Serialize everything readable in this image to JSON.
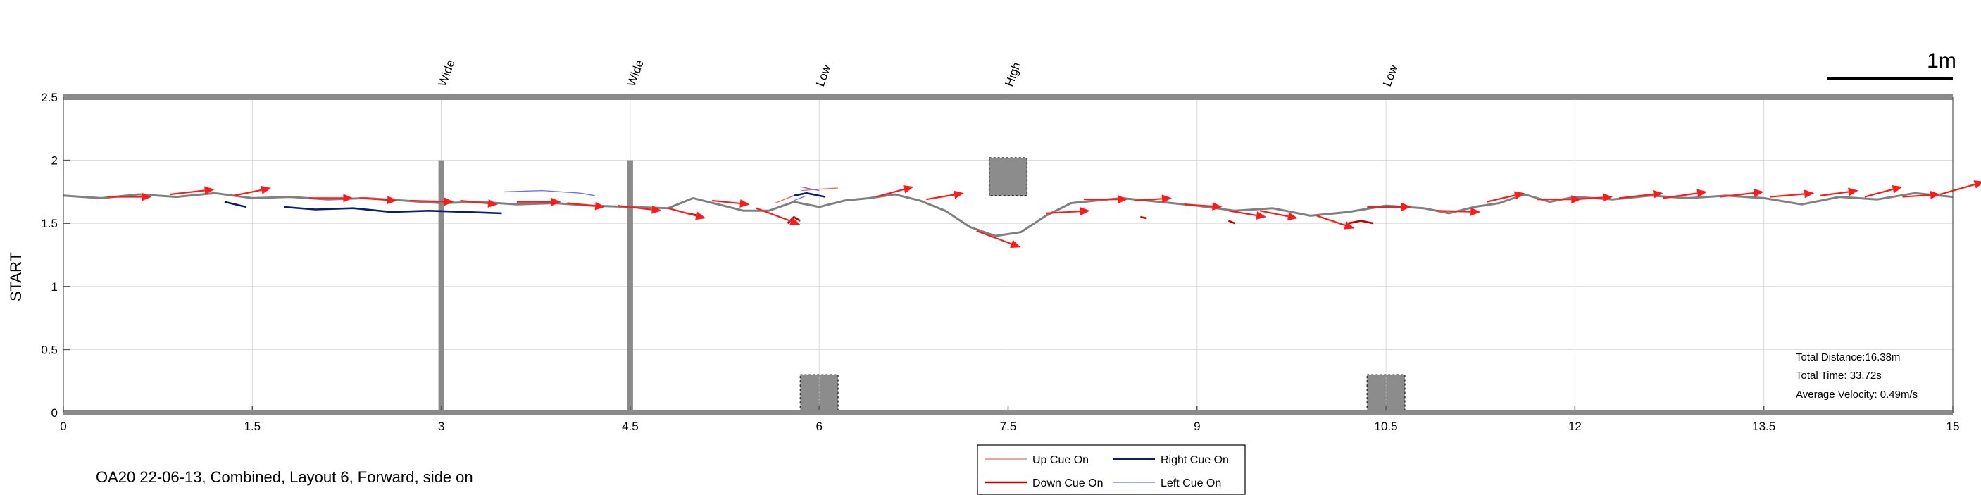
{
  "chart_data": {
    "type": "line",
    "title": "OA20 22-06-13, Combined, Layout 6, Forward, side on",
    "ylabel": "START",
    "xlim": [
      0,
      15
    ],
    "ylim": [
      0,
      2.5
    ],
    "xticks": [
      "0",
      "1.5",
      "3",
      "4.5",
      "6",
      "7.5",
      "9",
      "10.5",
      "12",
      "13.5",
      "15"
    ],
    "yticks": [
      "0",
      "0.5",
      "1",
      "1.5",
      "2",
      "2.5"
    ],
    "grid": true,
    "scale_bar_label": "1m",
    "obstacles": [
      {
        "label": "Wide",
        "x": 3.0,
        "kind": "post",
        "y_top": 2.0
      },
      {
        "label": "Wide",
        "x": 4.5,
        "kind": "post",
        "y_top": 2.0
      },
      {
        "label": "Low",
        "x": 6.0,
        "kind": "box",
        "y_from": 0.0,
        "y_to": 0.3
      },
      {
        "label": "High",
        "x": 7.5,
        "kind": "box",
        "y_from": 1.72,
        "y_to": 2.02
      },
      {
        "label": "Low",
        "x": 10.5,
        "kind": "box",
        "y_from": 0.0,
        "y_to": 0.3
      }
    ],
    "trajectory": {
      "name": "Trajectory",
      "color": "#808080",
      "x": [
        0,
        0.3,
        0.6,
        0.9,
        1.2,
        1.5,
        1.8,
        2.1,
        2.4,
        2.7,
        3.0,
        3.3,
        3.6,
        3.9,
        4.2,
        4.5,
        4.8,
        5.0,
        5.2,
        5.4,
        5.6,
        5.8,
        6.0,
        6.2,
        6.4,
        6.6,
        6.8,
        7.0,
        7.2,
        7.4,
        7.6,
        7.8,
        8.0,
        8.2,
        8.4,
        8.6,
        8.8,
        9.0,
        9.3,
        9.6,
        9.9,
        10.2,
        10.5,
        10.8,
        11.0,
        11.2,
        11.4,
        11.6,
        11.8,
        12.0,
        12.3,
        12.6,
        12.9,
        13.2,
        13.5,
        13.8,
        14.1,
        14.4,
        14.7,
        15.0
      ],
      "y": [
        1.72,
        1.7,
        1.73,
        1.71,
        1.74,
        1.7,
        1.71,
        1.69,
        1.7,
        1.68,
        1.66,
        1.67,
        1.65,
        1.66,
        1.64,
        1.63,
        1.62,
        1.7,
        1.65,
        1.6,
        1.6,
        1.67,
        1.63,
        1.68,
        1.7,
        1.73,
        1.68,
        1.6,
        1.47,
        1.4,
        1.43,
        1.56,
        1.66,
        1.68,
        1.7,
        1.68,
        1.66,
        1.64,
        1.6,
        1.62,
        1.56,
        1.59,
        1.64,
        1.62,
        1.58,
        1.63,
        1.66,
        1.73,
        1.67,
        1.71,
        1.69,
        1.72,
        1.7,
        1.72,
        1.7,
        1.65,
        1.71,
        1.69,
        1.74,
        1.71
      ]
    },
    "series": [
      {
        "name": "Up Cue On",
        "color": "#ff6060",
        "width": 1.3,
        "segments": [
          [
            [
              5.65,
              1.66
            ],
            [
              5.75,
              1.7
            ],
            [
              5.82,
              1.73
            ]
          ],
          [
            [
              5.86,
              1.76
            ],
            [
              5.98,
              1.77
            ],
            [
              6.15,
              1.78
            ]
          ]
        ]
      },
      {
        "name": "Down Cue On",
        "color": "#c00000",
        "width": 2.6,
        "segments": [
          [
            [
              5.75,
              1.5
            ],
            [
              5.8,
              1.55
            ],
            [
              5.85,
              1.52
            ]
          ],
          [
            [
              4.95,
              1.58
            ],
            [
              5.05,
              1.56
            ]
          ],
          [
            [
              8.55,
              1.55
            ],
            [
              8.6,
              1.54
            ]
          ],
          [
            [
              9.25,
              1.52
            ],
            [
              9.3,
              1.5
            ]
          ],
          [
            [
              10.2,
              1.5
            ],
            [
              10.3,
              1.52
            ],
            [
              10.4,
              1.5
            ]
          ]
        ]
      },
      {
        "name": "Right Cue On",
        "color": "#0a1f6e",
        "width": 2.6,
        "segments": [
          [
            [
              1.28,
              1.67
            ],
            [
              1.45,
              1.63
            ]
          ],
          [
            [
              1.75,
              1.63
            ],
            [
              2.0,
              1.61
            ],
            [
              2.3,
              1.62
            ],
            [
              2.6,
              1.59
            ],
            [
              2.9,
              1.6
            ],
            [
              3.2,
              1.59
            ],
            [
              3.48,
              1.58
            ]
          ],
          [
            [
              5.8,
              1.72
            ],
            [
              5.9,
              1.74
            ],
            [
              6.05,
              1.71
            ]
          ]
        ]
      },
      {
        "name": "Left Cue On",
        "color": "#6b6bff",
        "width": 1.3,
        "segments": [
          [
            [
              3.5,
              1.75
            ],
            [
              3.8,
              1.76
            ],
            [
              4.1,
              1.74
            ],
            [
              4.22,
              1.72
            ]
          ],
          [
            [
              5.8,
              1.68
            ],
            [
              5.9,
              1.72
            ]
          ],
          [
            [
              5.85,
              1.79
            ],
            [
              6.0,
              1.76
            ]
          ]
        ]
      }
    ],
    "velocity_arrows": [
      [
        0.35,
        1.71,
        0.35,
        0.0
      ],
      [
        0.85,
        1.73,
        0.35,
        0.04
      ],
      [
        1.35,
        1.72,
        0.3,
        0.06
      ],
      [
        1.95,
        1.7,
        0.35,
        0.0
      ],
      [
        2.35,
        1.7,
        0.3,
        -0.02
      ],
      [
        2.75,
        1.68,
        0.35,
        -0.01
      ],
      [
        3.15,
        1.68,
        0.3,
        -0.03
      ],
      [
        3.6,
        1.67,
        0.35,
        0.0
      ],
      [
        4.0,
        1.66,
        0.3,
        -0.03
      ],
      [
        4.4,
        1.64,
        0.35,
        -0.04
      ],
      [
        4.8,
        1.62,
        0.3,
        -0.08
      ],
      [
        5.15,
        1.68,
        0.3,
        -0.03
      ],
      [
        5.5,
        1.62,
        0.35,
        -0.13
      ],
      [
        6.45,
        1.71,
        0.3,
        0.08
      ],
      [
        6.85,
        1.69,
        0.3,
        0.05
      ],
      [
        7.25,
        1.44,
        0.35,
        -0.13
      ],
      [
        7.8,
        1.58,
        0.35,
        0.02
      ],
      [
        8.1,
        1.69,
        0.35,
        0.0
      ],
      [
        8.5,
        1.68,
        0.3,
        0.02
      ],
      [
        8.9,
        1.65,
        0.3,
        -0.02
      ],
      [
        9.25,
        1.6,
        0.3,
        -0.05
      ],
      [
        9.5,
        1.6,
        0.3,
        -0.06
      ],
      [
        9.95,
        1.56,
        0.3,
        -0.1
      ],
      [
        10.35,
        1.63,
        0.35,
        0.0
      ],
      [
        10.9,
        1.6,
        0.35,
        -0.01
      ],
      [
        11.3,
        1.67,
        0.3,
        0.07
      ],
      [
        11.7,
        1.69,
        0.35,
        0.0
      ],
      [
        12.0,
        1.69,
        0.3,
        0.02
      ],
      [
        12.35,
        1.7,
        0.35,
        0.04
      ],
      [
        12.7,
        1.7,
        0.35,
        0.05
      ],
      [
        13.15,
        1.71,
        0.35,
        0.04
      ],
      [
        13.55,
        1.71,
        0.35,
        0.03
      ],
      [
        13.95,
        1.72,
        0.3,
        0.04
      ],
      [
        14.3,
        1.71,
        0.3,
        0.08
      ],
      [
        14.6,
        1.71,
        0.3,
        0.02
      ],
      [
        14.9,
        1.73,
        0.35,
        0.1
      ]
    ],
    "arrow_color": "#ff1a1a",
    "stats": {
      "distance": "Total Distance:16.38m",
      "time": "Total Time: 33.72s",
      "velocity": "Average Velocity: 0.49m/s"
    },
    "legend": [
      {
        "label": "Up Cue On",
        "color": "#ff6060",
        "width": 1.3
      },
      {
        "label": "Right Cue On",
        "color": "#0a1f6e",
        "width": 2.6
      },
      {
        "label": "Down Cue On",
        "color": "#c00000",
        "width": 2.6
      },
      {
        "label": "Left Cue On",
        "color": "#6b6bff",
        "width": 1.3
      }
    ]
  }
}
